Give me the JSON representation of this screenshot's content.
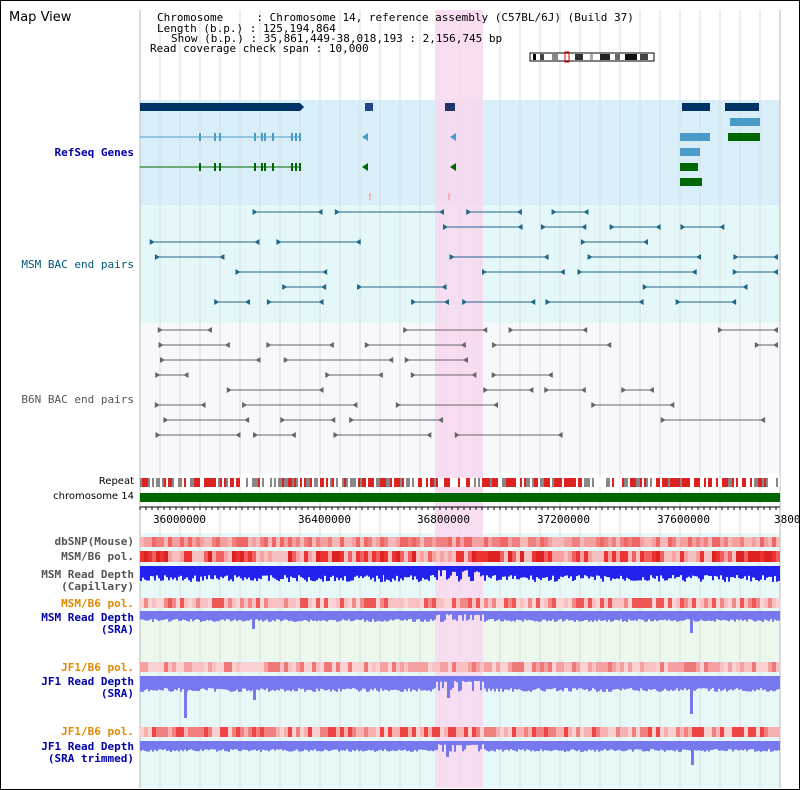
{
  "title": "Map View",
  "info": {
    "chromosome_key": "Chromosome",
    "chromosome_value": "Chromosome 14, reference assembly (C57BL/6J) (Build 37)",
    "length_key": "Length (b.p.)",
    "length_value": "125,194,864",
    "show_key": "Show (b.p.)",
    "show_value": "35,861,449-38,018,193 : 2,156,745 bp",
    "span_key": "Read coverage check span",
    "span_value": "10,000"
  },
  "tracks": {
    "refseq": "RefSeq Genes",
    "msm_bac": "MSM BAC end pairs",
    "b6n_bac": "B6N BAC end pairs",
    "repeat": "Repeat",
    "chromosome": "chromosome 14",
    "dbsnp": "dbSNP(Mouse)",
    "msm_b6_pol": "MSM/B6 pol.",
    "msm_depth_cap_1": "MSM Read Depth",
    "msm_depth_cap_2": "(Capillary)",
    "msm_b6_pol_sra": "MSM/B6 pol.",
    "msm_depth_sra_1": "MSM Read Depth",
    "msm_depth_sra_2": "(SRA)",
    "jf1_b6_pol": "JF1/B6 pol.",
    "jf1_depth_sra_1": "JF1 Read Depth",
    "jf1_depth_sra_2": "(SRA)",
    "jf1_b6_pol_trim": "JF1/B6 pol.",
    "jf1_depth_trim_1": "JF1 Read Depth",
    "jf1_depth_trim_2": "(SRA trimmed)"
  },
  "axis": {
    "ticks": [
      "36000000",
      "36400000",
      "36800000",
      "37200000",
      "37600000",
      "3800"
    ]
  },
  "colors": {
    "refseq_bg": "#d8eef8",
    "bac_bg": "#e4f8fa",
    "b6n_bg": "#f6f8fc",
    "highlight": "#f8d8f0",
    "refseq_dark": "#003366",
    "refseq_mid": "#4a9cc8",
    "refseq_green": "#006600",
    "bac_teal": "#226688",
    "bac_gray": "#666666",
    "chromosome_green": "#006600",
    "depth_blue": "#2222ee",
    "depth_light": "#7777ee"
  }
}
